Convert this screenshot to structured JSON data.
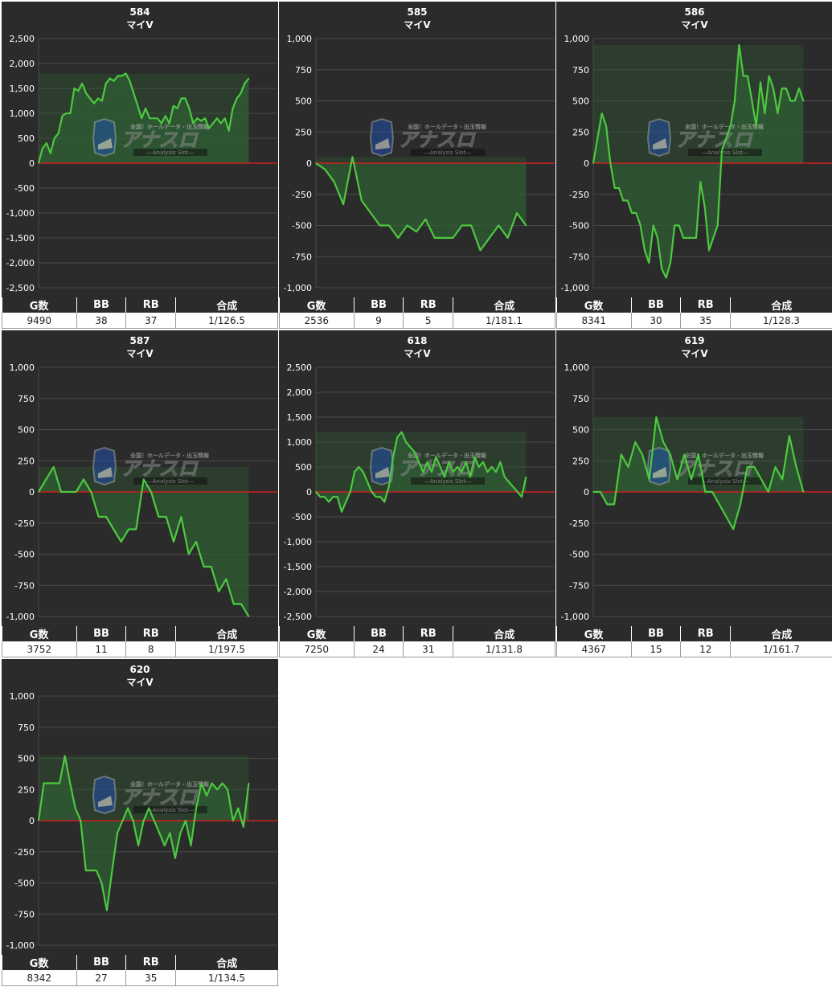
{
  "table_headers": {
    "g": "G数",
    "bb": "BB",
    "rb": "RB",
    "gousei": "合成"
  },
  "watermark": {
    "tagline": "全国！ホールデータ・出玉情報",
    "logo_text": "アナスロ",
    "sub": "―Analysis Slot―"
  },
  "colors": {
    "background": "#2b2b2b",
    "line": "#4cc93f",
    "fill": "#2f5e34",
    "zero_line": "#cc1f1f",
    "grid": "#4a4a4a",
    "axis_text": "#ffffff"
  },
  "chart_data": [
    {
      "type": "area",
      "title": "584",
      "subtitle": "マイV",
      "ylim": [
        -2500,
        2500
      ],
      "yticks": [
        2500,
        2000,
        1500,
        1000,
        500,
        0,
        -500,
        -1000,
        -1500,
        -2000,
        -2500
      ],
      "ytick_labels": [
        "2,500",
        "2,000",
        "1,500",
        "1,000",
        "500",
        "0",
        "-500",
        "-1,000",
        "-1,500",
        "-2,000",
        "-2,500"
      ],
      "y": [
        0,
        300,
        400,
        200,
        500,
        600,
        950,
        1000,
        1000,
        1500,
        1450,
        1600,
        1400,
        1300,
        1200,
        1300,
        1250,
        1600,
        1700,
        1650,
        1750,
        1750,
        1800,
        1650,
        1400,
        1150,
        900,
        1100,
        900,
        900,
        900,
        800,
        950,
        800,
        1150,
        1100,
        1300,
        1300,
        1100,
        800,
        900,
        850,
        900,
        700,
        800,
        900,
        800,
        900,
        650,
        1100,
        1300,
        1400,
        1600,
        1700
      ],
      "stats": {
        "g": "9490",
        "bb": "38",
        "rb": "37",
        "gousei": "1/126.5"
      }
    },
    {
      "type": "area",
      "title": "585",
      "subtitle": "マイV",
      "ylim": [
        -1000,
        1000
      ],
      "yticks": [
        1000,
        750,
        500,
        250,
        0,
        -250,
        -500,
        -750,
        -1000
      ],
      "ytick_labels": [
        "1,000",
        "750",
        "500",
        "250",
        "0",
        "-250",
        "-500",
        "-750",
        "-1,000"
      ],
      "y": [
        0,
        -50,
        -150,
        -330,
        50,
        -300,
        -400,
        -500,
        -500,
        -600,
        -500,
        -550,
        -450,
        -600,
        -600,
        -600,
        -500,
        -500,
        -700,
        -600,
        -500,
        -600,
        -400,
        -500
      ],
      "stats": {
        "g": "2536",
        "bb": "9",
        "rb": "5",
        "gousei": "1/181.1"
      }
    },
    {
      "type": "area",
      "title": "586",
      "subtitle": "マイV",
      "ylim": [
        -1000,
        1000
      ],
      "yticks": [
        1000,
        750,
        500,
        250,
        0,
        -250,
        -500,
        -750,
        -1000
      ],
      "ytick_labels": [
        "1,000",
        "750",
        "500",
        "250",
        "0",
        "-250",
        "-500",
        "-750",
        "-1,000"
      ],
      "y": [
        0,
        200,
        400,
        300,
        0,
        -200,
        -200,
        -300,
        -300,
        -400,
        -400,
        -500,
        -700,
        -800,
        -500,
        -600,
        -850,
        -920,
        -800,
        -500,
        -500,
        -600,
        -600,
        -600,
        -600,
        -150,
        -350,
        -700,
        -600,
        -500,
        100,
        200,
        300,
        500,
        950,
        700,
        700,
        500,
        300,
        650,
        400,
        700,
        600,
        400,
        600,
        600,
        500,
        500,
        600,
        500
      ],
      "stats": {
        "g": "8341",
        "bb": "30",
        "rb": "35",
        "gousei": "1/128.3"
      }
    },
    {
      "type": "area",
      "title": "587",
      "subtitle": "マイV",
      "ylim": [
        -1000,
        1000
      ],
      "yticks": [
        1000,
        750,
        500,
        250,
        0,
        -250,
        -500,
        -750,
        -1000
      ],
      "ytick_labels": [
        "1,000",
        "750",
        "500",
        "250",
        "0",
        "-250",
        "-500",
        "-750",
        "-1,000"
      ],
      "y": [
        0,
        100,
        200,
        0,
        0,
        0,
        100,
        0,
        -200,
        -200,
        -300,
        -400,
        -300,
        -300,
        100,
        0,
        -200,
        -200,
        -400,
        -200,
        -500,
        -400,
        -600,
        -600,
        -800,
        -700,
        -900,
        -900,
        -1000
      ],
      "stats": {
        "g": "3752",
        "bb": "11",
        "rb": "8",
        "gousei": "1/197.5"
      }
    },
    {
      "type": "area",
      "title": "618",
      "subtitle": "マイV",
      "ylim": [
        -2500,
        2500
      ],
      "yticks": [
        2500,
        2000,
        1500,
        1000,
        500,
        0,
        -500,
        -1000,
        -1500,
        -2000,
        -2500
      ],
      "ytick_labels": [
        "2,500",
        "2,000",
        "1,500",
        "1,000",
        "500",
        "0",
        "-500",
        "-1,000",
        "-1,500",
        "-2,000",
        "-2,500"
      ],
      "y": [
        0,
        -100,
        -100,
        -200,
        -100,
        -100,
        -400,
        -200,
        0,
        400,
        500,
        400,
        200,
        0,
        -100,
        -100,
        -200,
        100,
        700,
        1100,
        1200,
        1000,
        900,
        800,
        600,
        400,
        600,
        400,
        700,
        500,
        300,
        600,
        400,
        500,
        400,
        600,
        300,
        700,
        500,
        600,
        400,
        500,
        400,
        600,
        300,
        200,
        100,
        0,
        -100,
        300
      ],
      "stats": {
        "g": "7250",
        "bb": "24",
        "rb": "31",
        "gousei": "1/131.8"
      }
    },
    {
      "type": "area",
      "title": "619",
      "subtitle": "マイV",
      "ylim": [
        -1000,
        1000
      ],
      "yticks": [
        1000,
        750,
        500,
        250,
        0,
        -250,
        -500,
        -750,
        -1000
      ],
      "ytick_labels": [
        "1,000",
        "750",
        "500",
        "250",
        "0",
        "-250",
        "-500",
        "-750",
        "-1,000"
      ],
      "y": [
        0,
        0,
        -100,
        -100,
        300,
        200,
        400,
        300,
        100,
        600,
        400,
        300,
        100,
        300,
        100,
        300,
        0,
        0,
        -100,
        -200,
        -300,
        -100,
        200,
        200,
        100,
        0,
        200,
        100,
        450,
        200,
        0
      ],
      "stats": {
        "g": "4367",
        "bb": "15",
        "rb": "12",
        "gousei": "1/161.7"
      }
    },
    {
      "type": "area",
      "title": "620",
      "subtitle": "マイV",
      "ylim": [
        -1000,
        1000
      ],
      "yticks": [
        1000,
        750,
        500,
        250,
        0,
        -250,
        -500,
        -750,
        -1000
      ],
      "ytick_labels": [
        "1,000",
        "750",
        "500",
        "250",
        "0",
        "-250",
        "-500",
        "-750",
        "-1,000"
      ],
      "y": [
        0,
        300,
        300,
        300,
        300,
        520,
        300,
        100,
        0,
        -400,
        -400,
        -400,
        -500,
        -720,
        -400,
        -100,
        0,
        100,
        0,
        -200,
        0,
        100,
        0,
        -100,
        -200,
        -100,
        -300,
        -100,
        0,
        -200,
        100,
        300,
        200,
        300,
        250,
        300,
        250,
        0,
        100,
        -50,
        300
      ],
      "stats": {
        "g": "8342",
        "bb": "27",
        "rb": "35",
        "gousei": "1/134.5"
      }
    }
  ]
}
